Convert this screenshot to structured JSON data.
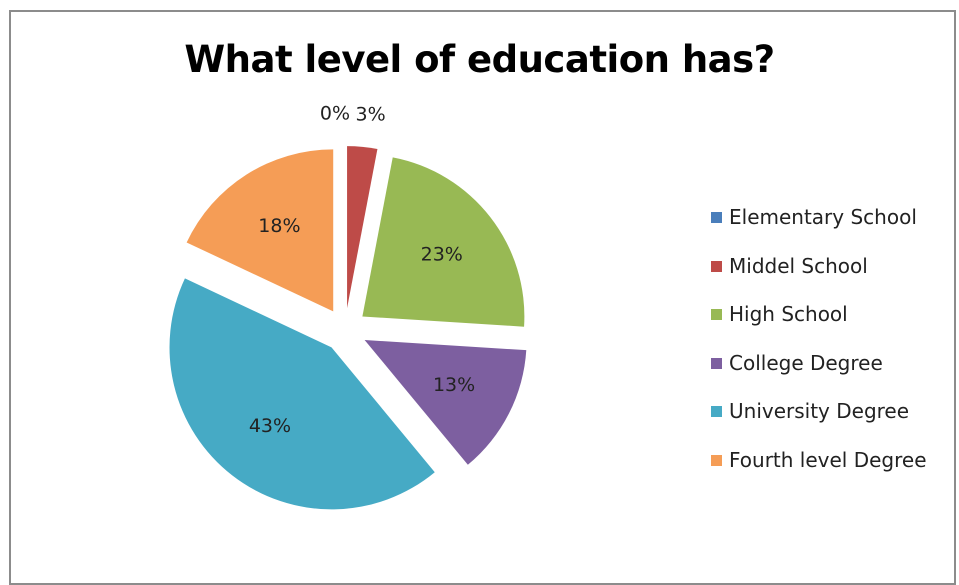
{
  "chart_data": {
    "type": "pie",
    "title": "What level of education has?",
    "categories": [
      "Elementary School",
      "Middel School",
      "High School",
      "College Degree",
      "University Degree",
      "Fourth level Degree"
    ],
    "values": [
      0,
      3,
      23,
      13,
      43,
      18
    ],
    "data_labels": [
      "0%",
      "3%",
      "23%",
      "13%",
      "43%",
      "18%"
    ],
    "colors": [
      "#4a7ebb",
      "#be4b48",
      "#98b954",
      "#7d5fa0",
      "#46aac5",
      "#f59d56"
    ],
    "exploded": true,
    "legend_position": "right"
  }
}
